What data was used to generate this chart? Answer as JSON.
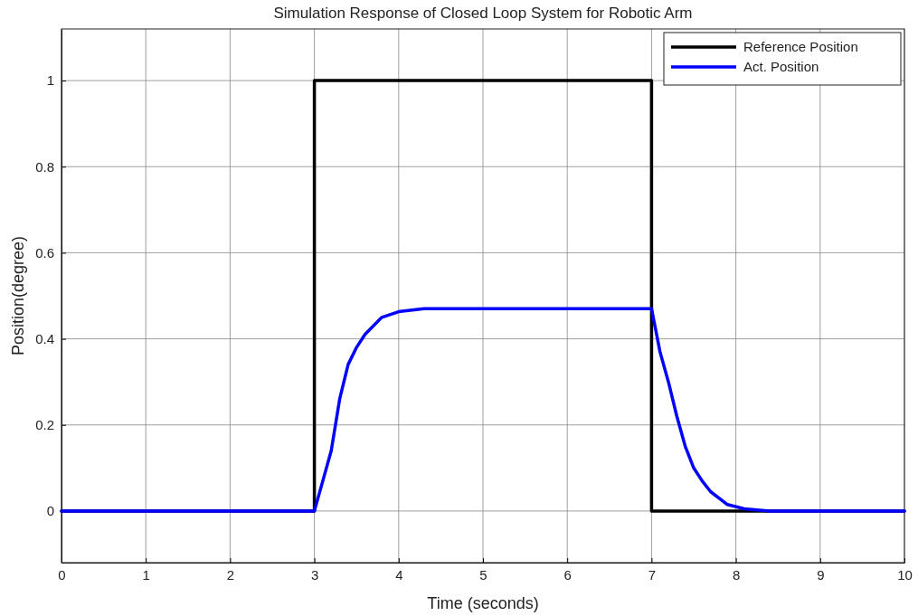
{
  "chart_data": {
    "type": "line",
    "title": "Simulation Response of Closed Loop System for Robotic Arm",
    "xlabel": "Time (seconds)",
    "ylabel": "Position(degree)",
    "xlim": [
      0,
      10
    ],
    "ylim": [
      -0.12,
      1.12
    ],
    "xticks": [
      0,
      1,
      2,
      3,
      4,
      5,
      6,
      7,
      8,
      9,
      10
    ],
    "yticks": [
      0,
      0.2,
      0.4,
      0.6,
      0.8,
      1
    ],
    "grid": true,
    "legend": "top right",
    "line_style": "solid",
    "marker": "none",
    "series": [
      {
        "name": "Reference Position",
        "color": "#000000",
        "x": [
          0,
          3,
          3,
          7,
          7,
          10
        ],
        "values": [
          0,
          0,
          1,
          1,
          0,
          0
        ]
      },
      {
        "name": "Act. Position",
        "color": "#0000ff",
        "x": [
          0,
          3,
          3.1,
          3.2,
          3.3,
          3.4,
          3.5,
          3.6,
          3.7,
          3.8,
          4,
          4.3,
          5,
          6,
          7,
          7.1,
          7.2,
          7.3,
          7.4,
          7.5,
          7.6,
          7.7,
          7.9,
          8.1,
          8.4,
          10
        ],
        "values": [
          0,
          0,
          0.07,
          0.14,
          0.26,
          0.34,
          0.38,
          0.41,
          0.43,
          0.45,
          0.463,
          0.47,
          0.47,
          0.47,
          0.47,
          0.37,
          0.3,
          0.22,
          0.15,
          0.1,
          0.07,
          0.045,
          0.015,
          0.005,
          0,
          0
        ]
      }
    ]
  }
}
